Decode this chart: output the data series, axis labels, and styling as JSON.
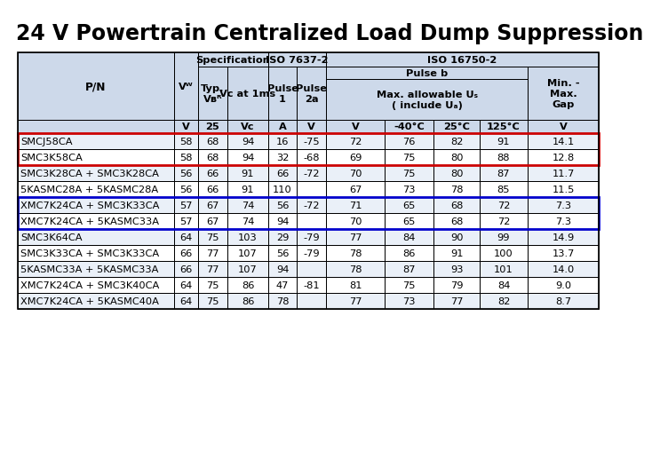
{
  "title": "24 V Powertrain Centralized Load Dump Suppression",
  "data_rows": [
    [
      "SMCJ58CA",
      "58",
      "68",
      "94",
      "16",
      "-75",
      "72",
      "76",
      "82",
      "91",
      "14.1"
    ],
    [
      "SMC3K58CA",
      "58",
      "68",
      "94",
      "32",
      "-68",
      "69",
      "75",
      "80",
      "88",
      "12.8"
    ],
    [
      "SMC3K28CA + SMC3K28CA",
      "56",
      "66",
      "91",
      "66",
      "-72",
      "70",
      "75",
      "80",
      "87",
      "11.7"
    ],
    [
      "5KASMC28A + 5KASMC28A",
      "56",
      "66",
      "91",
      "110",
      "",
      "67",
      "73",
      "78",
      "85",
      "11.5"
    ],
    [
      "XMC7K24CA + SMC3K33CA",
      "57",
      "67",
      "74",
      "56",
      "-72",
      "71",
      "65",
      "68",
      "72",
      "7.3"
    ],
    [
      "XMC7K24CA + 5KASMC33A",
      "57",
      "67",
      "74",
      "94",
      "",
      "70",
      "65",
      "68",
      "72",
      "7.3"
    ],
    [
      "SMC3K64CA",
      "64",
      "75",
      "103",
      "29",
      "-79",
      "77",
      "84",
      "90",
      "99",
      "14.9"
    ],
    [
      "SMC3K33CA + SMC3K33CA",
      "66",
      "77",
      "107",
      "56",
      "-79",
      "78",
      "86",
      "91",
      "100",
      "13.7"
    ],
    [
      "5KASMC33A + 5KASMC33A",
      "66",
      "77",
      "107",
      "94",
      "",
      "78",
      "87",
      "93",
      "101",
      "14.0"
    ],
    [
      "XMC7K24CA + SMC3K40CA",
      "64",
      "75",
      "86",
      "47",
      "-81",
      "81",
      "75",
      "79",
      "84",
      "9.0"
    ],
    [
      "XMC7K24CA + 5KASMC40A",
      "64",
      "75",
      "86",
      "78",
      "",
      "77",
      "73",
      "77",
      "82",
      "8.7"
    ]
  ],
  "red_rows": [
    0,
    1
  ],
  "blue_rows": [
    4,
    5
  ],
  "header_bg": "#cdd9ea",
  "alt_row_bg": "#eaf0f8",
  "white_bg": "#ffffff",
  "red_color": "#cc0000",
  "blue_color": "#0000cc",
  "title_fontsize": 17,
  "cell_fontsize": 8.2,
  "header_fontsize": 8.2
}
